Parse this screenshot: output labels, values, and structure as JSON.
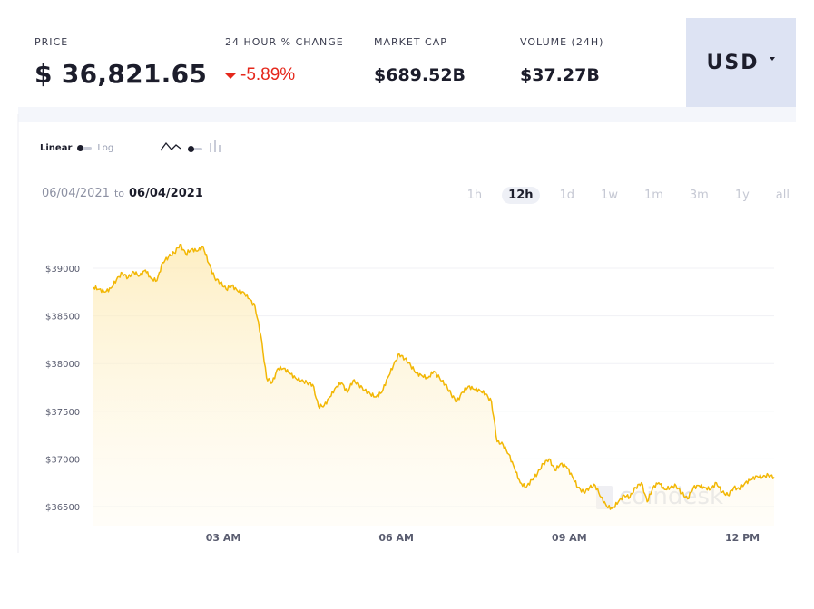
{
  "stats": {
    "price_label": "PRICE",
    "price_value": "$ 36,821.65",
    "change_label": "24 HOUR % CHANGE",
    "change_value": "-5.89%",
    "market_cap_label": "MARKET CAP",
    "market_cap_value": "$689.52B",
    "volume_label": "VOLUME (24H)",
    "volume_value": "$37.27B"
  },
  "currency": {
    "label": "USD"
  },
  "controls": {
    "scale_linear": "Linear",
    "scale_log": "Log",
    "date_from": "06/04/2021",
    "date_to_word": "to",
    "date_to": "06/04/2021",
    "ranges": [
      "1h",
      "12h",
      "1d",
      "1w",
      "1m",
      "3m",
      "1y",
      "all"
    ],
    "active_range": "12h"
  },
  "colors": {
    "accent": "#f2b705",
    "negative": "#e5271b",
    "currency_bg": "#dde3f3"
  },
  "watermark": "coindesk",
  "chart_data": {
    "type": "area",
    "ylim": [
      36300,
      39500
    ],
    "yticks": [
      39000,
      38500,
      38000,
      37500,
      37000,
      36500
    ],
    "ytick_labels": [
      "$39000",
      "$38500",
      "$38000",
      "$37500",
      "$37000",
      "$36500"
    ],
    "xticks": [
      {
        "t": 3.0,
        "label": "03 AM"
      },
      {
        "t": 6.0,
        "label": "06 AM"
      },
      {
        "t": 9.0,
        "label": "09 AM"
      },
      {
        "t": 12.0,
        "label": "12 PM"
      }
    ],
    "x": [
      0.75,
      0.85,
      0.95,
      1.05,
      1.15,
      1.25,
      1.35,
      1.45,
      1.55,
      1.65,
      1.75,
      1.85,
      1.95,
      2.05,
      2.15,
      2.25,
      2.35,
      2.45,
      2.55,
      2.65,
      2.75,
      2.85,
      2.95,
      3.05,
      3.15,
      3.25,
      3.35,
      3.45,
      3.55,
      3.65,
      3.75,
      3.85,
      3.95,
      4.05,
      4.15,
      4.25,
      4.35,
      4.45,
      4.55,
      4.65,
      4.75,
      4.85,
      4.95,
      5.05,
      5.15,
      5.25,
      5.35,
      5.45,
      5.55,
      5.65,
      5.75,
      5.85,
      5.95,
      6.05,
      6.15,
      6.25,
      6.35,
      6.45,
      6.55,
      6.65,
      6.75,
      6.85,
      6.95,
      7.05,
      7.15,
      7.25,
      7.35,
      7.45,
      7.55,
      7.65,
      7.75,
      7.85,
      7.95,
      8.05,
      8.15,
      8.25,
      8.35,
      8.45,
      8.55,
      8.65,
      8.75,
      8.85,
      8.95,
      9.05,
      9.15,
      9.25,
      9.35,
      9.45,
      9.55,
      9.65,
      9.75,
      9.85,
      9.95,
      10.05,
      10.15,
      10.25,
      10.35,
      10.45,
      10.55,
      10.65,
      10.75,
      10.85,
      10.95,
      11.05,
      11.15,
      11.25,
      11.35,
      11.45,
      11.55,
      11.65,
      11.75,
      11.85,
      11.95,
      12.05,
      12.15,
      12.25,
      12.35,
      12.45,
      12.55
    ],
    "y": [
      38800,
      38780,
      38750,
      38790,
      38880,
      38950,
      38900,
      38960,
      38920,
      38980,
      38890,
      38870,
      39060,
      39120,
      39160,
      39250,
      39150,
      39200,
      39180,
      39230,
      39050,
      38900,
      38850,
      38780,
      38820,
      38760,
      38750,
      38680,
      38600,
      38300,
      37850,
      37800,
      37950,
      37950,
      37900,
      37850,
      37820,
      37800,
      37780,
      37550,
      37560,
      37650,
      37750,
      37800,
      37700,
      37820,
      37780,
      37720,
      37680,
      37650,
      37700,
      37850,
      37980,
      38100,
      38050,
      37980,
      37900,
      37870,
      37850,
      37920,
      37850,
      37780,
      37680,
      37600,
      37700,
      37760,
      37730,
      37720,
      37680,
      37600,
      37180,
      37150,
      37050,
      36900,
      36750,
      36700,
      36780,
      36850,
      36950,
      37000,
      36880,
      36950,
      36920,
      36820,
      36700,
      36650,
      36700,
      36720,
      36600,
      36500,
      36480,
      36550,
      36620,
      36600,
      36700,
      36750,
      36550,
      36700,
      36750,
      36680,
      36700,
      36720,
      36640,
      36580,
      36700,
      36720,
      36700,
      36680,
      36750,
      36650,
      36620,
      36700,
      36680,
      36750,
      36780,
      36820,
      36810,
      36830,
      36810
    ]
  }
}
